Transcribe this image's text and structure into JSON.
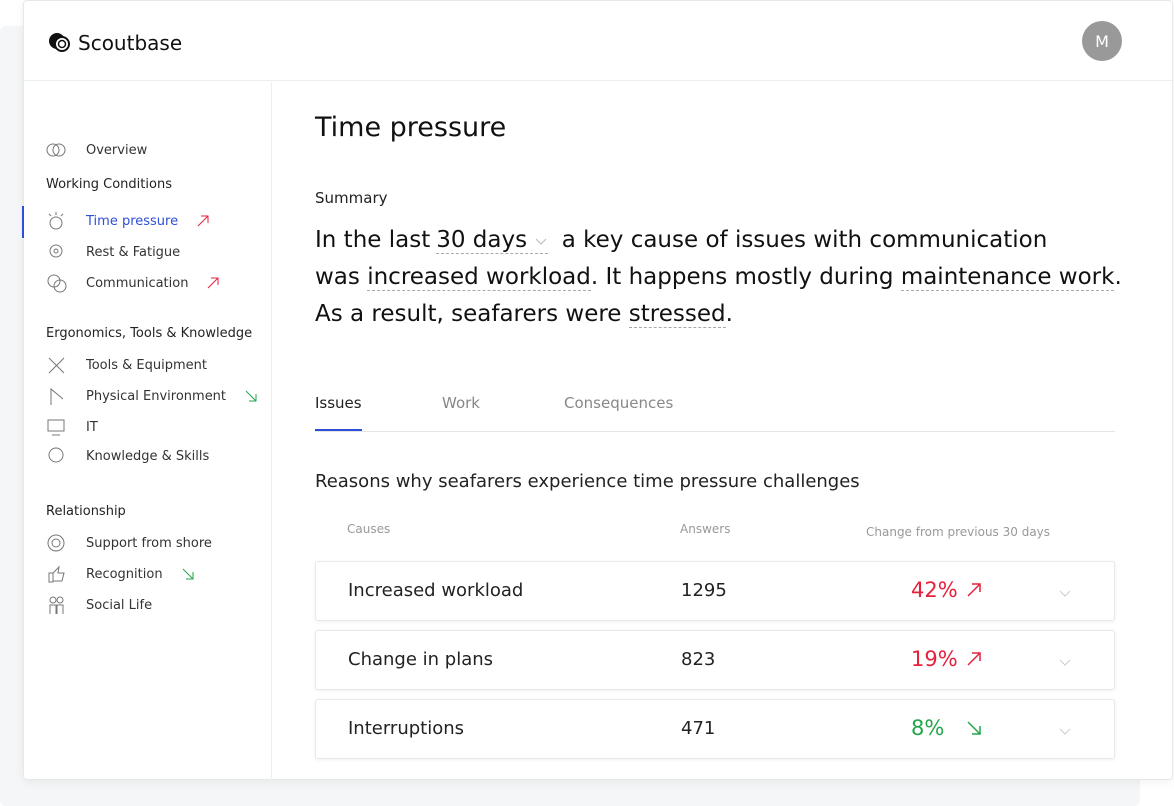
{
  "header": {
    "brand": "Scoutbase",
    "avatar": "M"
  },
  "sidebar": {
    "overview": "Overview",
    "sections": [
      {
        "title": "Working Conditions",
        "items": [
          "Time pressure",
          "Rest & Fatigue",
          "Communication"
        ]
      },
      {
        "title": "Ergonomics, Tools & Knowledge",
        "items": [
          "Tools & Equipment",
          "Physical Environment",
          "IT",
          "Knowledge & Skills"
        ]
      },
      {
        "title": "Relationship",
        "items": [
          "Support from shore",
          "Recognition",
          "Social Life"
        ]
      }
    ]
  },
  "main": {
    "title": "Time pressure",
    "summary_label": "Summary",
    "summary": [
      "In the last",
      "30 days",
      "a key cause of issues with communication",
      "was",
      "increased workload",
      ". It happens mostly during",
      "maintenance work",
      ".",
      "As a result, seafarers were",
      "stressed",
      "."
    ],
    "tabs": [
      "Issues",
      "Work",
      "Consequences"
    ],
    "table": {
      "caption": "Reasons why seafarers experience time pressure challenges",
      "columns": [
        "Causes",
        "Answers",
        "Change from previous 30 days"
      ],
      "rows": [
        [
          "Increased workload",
          "1295",
          "42%"
        ],
        [
          "Change in plans",
          "823",
          "19%"
        ],
        [
          "Interruptions",
          "471",
          "8%"
        ]
      ]
    }
  }
}
